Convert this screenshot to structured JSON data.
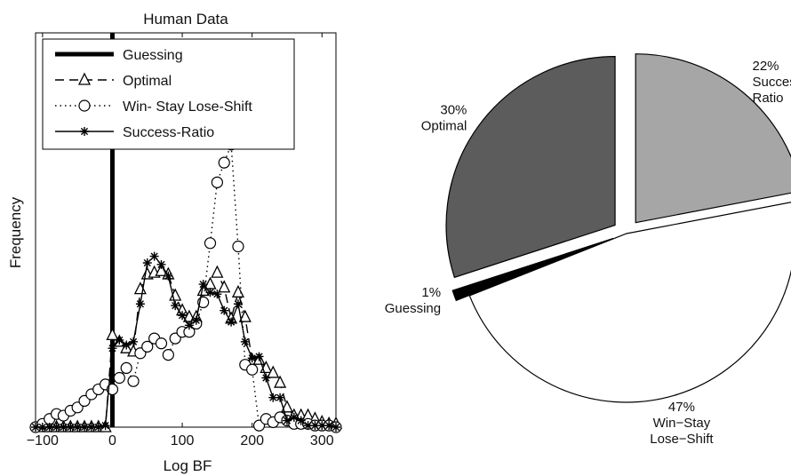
{
  "chart_data": [
    {
      "type": "line",
      "title": "Human Data",
      "xlabel": "Log BF",
      "ylabel": "Frequency",
      "xlim": [
        -110,
        320
      ],
      "ylim": [
        0,
        24
      ],
      "xticks": [
        -100,
        0,
        100,
        200,
        300
      ],
      "xtick_labels": [
        "−100",
        "0",
        "100",
        "200",
        "300"
      ],
      "legend_position": "top-left",
      "series": [
        {
          "name": "Guessing",
          "style": "thick-vertical-line",
          "x": [
            0
          ],
          "color": "#000000"
        },
        {
          "name": "Optimal",
          "style": "dashed-triangle",
          "x": [
            -100,
            -90,
            -80,
            -70,
            -60,
            -50,
            -40,
            -30,
            -20,
            -10,
            0,
            10,
            20,
            30,
            40,
            50,
            60,
            70,
            80,
            90,
            100,
            110,
            120,
            130,
            140,
            150,
            160,
            170,
            180,
            190,
            200,
            210,
            220,
            230,
            240,
            250,
            260,
            270,
            280,
            290,
            300,
            310,
            320
          ],
          "y": [
            0,
            0,
            0,
            0,
            0,
            0,
            0,
            0,
            0,
            0,
            5.6,
            5.2,
            4.8,
            4.6,
            8.4,
            9.3,
            9.4,
            9.5,
            9.3,
            8,
            7.1,
            6.7,
            6.7,
            8.3,
            8.7,
            9.4,
            8.5,
            6.6,
            8.2,
            6.7,
            4.1,
            4.1,
            3.6,
            3.3,
            2.7,
            1.2,
            0.7,
            0.7,
            0.7,
            0.5,
            0.3,
            0.2,
            0.2
          ],
          "color": "#000000"
        },
        {
          "name": "Win- Stay Lose-Shift",
          "style": "dotted-circle",
          "x": [
            -110,
            -100,
            -90,
            -80,
            -70,
            -60,
            -50,
            -40,
            -30,
            -20,
            -10,
            0,
            10,
            20,
            30,
            40,
            50,
            60,
            70,
            80,
            90,
            100,
            110,
            120,
            130,
            140,
            150,
            160,
            170,
            180,
            190,
            200,
            210,
            220,
            230,
            240,
            250,
            260,
            270,
            280,
            290,
            300,
            310,
            320
          ],
          "y": [
            0,
            0.2,
            0.5,
            0.8,
            0.7,
            1,
            1.2,
            1.6,
            2,
            2.3,
            2.6,
            2.3,
            3,
            3.6,
            2.8,
            4.5,
            4.9,
            5.4,
            5.1,
            4.4,
            5.4,
            5.8,
            5.8,
            6.3,
            7.6,
            11.2,
            14.9,
            16.1,
            17.2,
            11,
            3.8,
            3.5,
            0.1,
            0.5,
            0.3,
            0.6,
            0.4,
            0.2,
            0.2,
            0.2,
            0.1,
            0.1,
            0.1,
            0
          ],
          "color": "#000000"
        },
        {
          "name": "Success-Ratio",
          "style": "solid-star",
          "x": [
            -110,
            -100,
            -90,
            -80,
            -70,
            -60,
            -50,
            -40,
            -30,
            -20,
            -10,
            0,
            10,
            20,
            30,
            40,
            50,
            60,
            70,
            80,
            90,
            100,
            110,
            120,
            130,
            140,
            150,
            160,
            170,
            180,
            190,
            200,
            210,
            220,
            230,
            240,
            250,
            260,
            270,
            280,
            290,
            300,
            310,
            320
          ],
          "y": [
            0,
            0,
            0,
            0,
            0,
            0,
            0,
            0,
            0,
            0,
            0.1,
            4.8,
            5.3,
            5,
            5.2,
            7.5,
            10,
            10.4,
            9.9,
            9.2,
            7.4,
            6.8,
            6.2,
            6.5,
            8.7,
            8.2,
            8.1,
            7.1,
            6.4,
            7.5,
            5.2,
            4.2,
            4.3,
            3,
            1.8,
            1.8,
            0.4,
            0.6,
            0.4,
            0.1,
            0.1,
            0.1,
            0.1,
            0
          ],
          "color": "#000000"
        }
      ]
    },
    {
      "type": "pie",
      "slices": [
        {
          "name": "Success Ratio",
          "value": 22,
          "label_lines": [
            "22%",
            "Success",
            "Ratio"
          ],
          "color": "#a6a6a6",
          "exploded": true
        },
        {
          "name": "Win-Stay Lose-Shift",
          "value": 47,
          "label_lines": [
            "47%",
            "Win−Stay",
            "Lose−Shift"
          ],
          "color": "#ffffff",
          "exploded": false
        },
        {
          "name": "Guessing",
          "value": 1,
          "label_lines": [
            "1%",
            "Guessing"
          ],
          "color": "#000000",
          "exploded": true
        },
        {
          "name": "Optimal",
          "value": 30,
          "label_lines": [
            "30%",
            "Optimal"
          ],
          "color": "#5c5c5c",
          "exploded": true
        }
      ]
    }
  ]
}
